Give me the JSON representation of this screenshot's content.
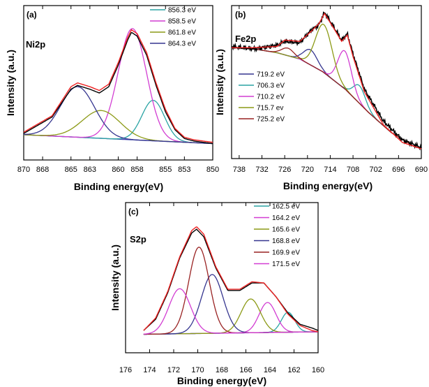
{
  "chart_data": [
    {
      "type": "line",
      "panel": "(a)",
      "element": "Ni2p",
      "xlabel": "Binding energy(eV)",
      "ylabel": "Intensity (a.u.)",
      "xlim": [
        870,
        850
      ],
      "x_reversed": true,
      "x_ticks": [
        870,
        868,
        865,
        863,
        860,
        858,
        855,
        853,
        850
      ],
      "legend_position": "top-right",
      "legend": [
        {
          "label": "856.3 eV",
          "color": "#2aa4a4"
        },
        {
          "label": "858.5 eV",
          "color": "#d23dd2"
        },
        {
          "label": "861.8 eV",
          "color": "#8c9a16"
        },
        {
          "label": "864.3 eV",
          "color": "#35358f"
        }
      ],
      "baseline": {
        "color": "#3a45b0",
        "x": [
          870,
          850
        ],
        "y": [
          0.15,
          0.08
        ]
      },
      "envelope": {
        "color": "#ee2222",
        "x": [
          870,
          867,
          865,
          864.3,
          863,
          862,
          861,
          860,
          859,
          858.6,
          858,
          857,
          856,
          855,
          854,
          853,
          852,
          850
        ],
        "y": [
          0.17,
          0.3,
          0.53,
          0.56,
          0.53,
          0.5,
          0.55,
          0.72,
          0.92,
          0.98,
          0.95,
          0.8,
          0.56,
          0.35,
          0.2,
          0.13,
          0.11,
          0.09
        ]
      },
      "data_trace": {
        "color": "#000000",
        "x": [
          870,
          867,
          865,
          864.3,
          863,
          862,
          861,
          860,
          859,
          858.6,
          858,
          857,
          856,
          855,
          854,
          853,
          852,
          850
        ],
        "y": [
          0.16,
          0.29,
          0.51,
          0.54,
          0.51,
          0.48,
          0.53,
          0.7,
          0.9,
          0.96,
          0.93,
          0.78,
          0.54,
          0.33,
          0.19,
          0.12,
          0.1,
          0.08
        ]
      },
      "peaks": [
        {
          "center": 856.3,
          "height": 0.32,
          "width": 1.2,
          "color": "#2aa4a4"
        },
        {
          "center": 858.5,
          "height": 0.88,
          "width": 1.5,
          "color": "#d23dd2"
        },
        {
          "center": 861.8,
          "height": 0.22,
          "width": 2.0,
          "color": "#8c9a16"
        },
        {
          "center": 864.3,
          "height": 0.4,
          "width": 1.8,
          "color": "#35358f"
        }
      ]
    },
    {
      "type": "line",
      "panel": "(b)",
      "element": "Fe2p",
      "xlabel": "Binding energy(eV)",
      "ylabel": "Intensity (a.u.)",
      "xlim": [
        740,
        690
      ],
      "x_reversed": true,
      "x_ticks": [
        738,
        732,
        726,
        720,
        714,
        708,
        702,
        696,
        690
      ],
      "legend_position": "bottom-left",
      "legend": [
        {
          "label": "719.2 eV",
          "color": "#35358f"
        },
        {
          "label": "706.3 eV",
          "color": "#2aa4a4"
        },
        {
          "label": "710.2 eV",
          "color": "#d23dd2"
        },
        {
          "label": "715.7 ev",
          "color": "#8c9a16"
        },
        {
          "label": "725.2 eV",
          "color": "#992222"
        }
      ],
      "baseline": {
        "color": "#3a45b0",
        "x": [
          740,
          734,
          728,
          722,
          716,
          710,
          704,
          698,
          692,
          690
        ],
        "y": [
          0.85,
          0.84,
          0.81,
          0.76,
          0.66,
          0.52,
          0.34,
          0.18,
          0.07,
          0.05
        ]
      },
      "envelope": {
        "color": "#ee2222",
        "x": [
          740,
          734,
          728,
          726,
          722,
          719,
          717,
          715.5,
          713,
          711,
          709.5,
          708,
          705,
          700,
          695,
          690
        ],
        "y": [
          0.85,
          0.85,
          0.86,
          0.91,
          0.9,
          0.98,
          1.04,
          1.12,
          1.0,
          0.9,
          0.95,
          0.78,
          0.5,
          0.24,
          0.1,
          0.05
        ]
      },
      "data_trace": {
        "color": "#000000",
        "x": [
          740,
          734,
          728,
          726,
          722,
          719,
          717,
          715.5,
          713,
          711,
          709.5,
          708,
          705,
          700,
          695,
          690
        ],
        "y": [
          0.86,
          0.84,
          0.87,
          0.9,
          0.89,
          0.99,
          1.03,
          1.13,
          1.01,
          0.91,
          0.96,
          0.8,
          0.52,
          0.27,
          0.12,
          0.06
        ]
      },
      "peaks": [
        {
          "center": 719.2,
          "height": 0.12,
          "width": 1.8,
          "color": "#35358f"
        },
        {
          "center": 706.3,
          "height": 0.14,
          "width": 1.6,
          "color": "#2aa4a4"
        },
        {
          "center": 710.2,
          "height": 0.3,
          "width": 1.8,
          "color": "#d23dd2"
        },
        {
          "center": 715.7,
          "height": 0.38,
          "width": 2.2,
          "color": "#8c9a16"
        },
        {
          "center": 725.2,
          "height": 0.06,
          "width": 1.6,
          "color": "#992222"
        }
      ]
    },
    {
      "type": "line",
      "panel": "(c)",
      "element": "S2p",
      "xlabel": "Binding energy(eV)",
      "ylabel": "Intensity (a.u.)",
      "xlim": [
        176,
        160
      ],
      "x_reversed": true,
      "x_ticks": [
        176,
        174,
        172,
        170,
        168,
        166,
        164,
        162,
        160
      ],
      "legend_position": "top-right",
      "legend": [
        {
          "label": "162.5 eV",
          "color": "#2aa4a4"
        },
        {
          "label": "164.2 eV",
          "color": "#d23dd2"
        },
        {
          "label": "165.6 eV",
          "color": "#8c9a16"
        },
        {
          "label": "168.8 eV",
          "color": "#35358f"
        },
        {
          "label": "169.9 eV",
          "color": "#992222"
        },
        {
          "label": "171.5 eV",
          "color": "#d23dd2"
        }
      ],
      "baseline": {
        "color": "#3a45b0",
        "x": [
          174.5,
          160
        ],
        "y": [
          0.12,
          0.14
        ]
      },
      "envelope": {
        "color": "#ee2222",
        "x": [
          174.5,
          173.5,
          172.5,
          171.5,
          170.5,
          170.1,
          169.5,
          168.5,
          167.5,
          166.5,
          165.5,
          164.5,
          163.5,
          162.5,
          161.5,
          160.5,
          160
        ],
        "y": [
          0.15,
          0.25,
          0.46,
          0.74,
          0.95,
          0.98,
          0.92,
          0.66,
          0.48,
          0.48,
          0.54,
          0.53,
          0.42,
          0.28,
          0.19,
          0.15,
          0.14
        ]
      },
      "data_trace": {
        "color": "#000000",
        "x": [
          174.5,
          173.5,
          172.5,
          171.5,
          170.5,
          170.1,
          169.5,
          168.5,
          167.5,
          166.5,
          165.5,
          164.5,
          163.5,
          162.5,
          161.5,
          160.5,
          160
        ],
        "y": [
          0.15,
          0.24,
          0.45,
          0.73,
          0.93,
          0.96,
          0.9,
          0.65,
          0.47,
          0.47,
          0.53,
          0.53,
          0.42,
          0.29,
          0.2,
          0.17,
          0.15
        ]
      },
      "peaks": [
        {
          "center": 162.5,
          "height": 0.16,
          "width": 0.55,
          "color": "#2aa4a4"
        },
        {
          "center": 164.2,
          "height": 0.24,
          "width": 0.7,
          "color": "#d23dd2"
        },
        {
          "center": 165.6,
          "height": 0.27,
          "width": 0.8,
          "color": "#8c9a16"
        },
        {
          "center": 168.8,
          "height": 0.47,
          "width": 0.9,
          "color": "#35358f"
        },
        {
          "center": 169.9,
          "height": 0.69,
          "width": 0.85,
          "color": "#992222"
        },
        {
          "center": 171.5,
          "height": 0.36,
          "width": 0.9,
          "color": "#d23dd2"
        }
      ]
    }
  ]
}
